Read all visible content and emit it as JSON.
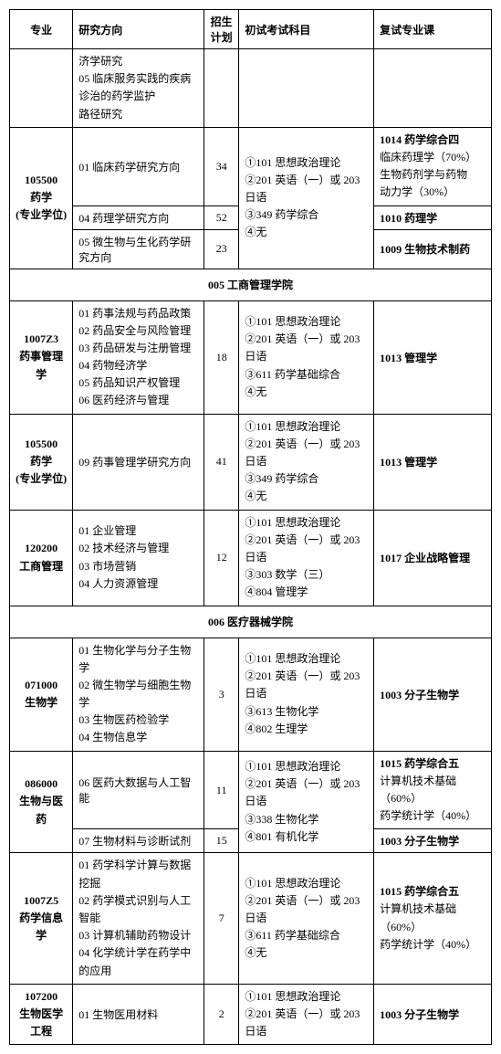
{
  "headers": {
    "major": "专业",
    "direction": "研究方向",
    "plan": "招生计划",
    "exam": "初试考试科目",
    "retest": "复试专业课"
  },
  "rows": {
    "r0_dir": "济学研究\n05 临床服务实践的疾病诊治的药学监护\n路径研究",
    "r1_major": "105500\n药学\n(专业学位)",
    "r1_dir": "01 临床药学研究方向",
    "r1_plan": "34",
    "r1_retest": "1014 药学综合四\n临床药理学（70%）\n生物药剂学与药物\n动力学（30%）",
    "r2_dir": "04 药理学研究方向",
    "r2_plan": "52",
    "r2_exam": "①101 思想政治理论\n②201 英语（一）或 203 日语\n③349 药学综合\n④无",
    "r2_retest": "1010 药理学",
    "r3_dir": "05 微生物与生化药学研究方向",
    "r3_plan": "23",
    "r3_retest": "1009 生物技术制药",
    "sec1": "005 工商管理学院",
    "r4_major": "1007Z3\n药事管理学",
    "r4_dir": "01 药事法规与药品政策\n02 药品安全与风险管理\n03 药品研发与注册管理\n04 药物经济学\n05 药品知识产权管理\n06 医药经济与管理",
    "r4_plan": "18",
    "r4_exam": "①101 思想政治理论\n②201 英语（一）或 203 日语\n③611 药学基础综合\n④无",
    "r4_retest": "1013 管理学",
    "r5_major": "105500\n药学\n(专业学位)",
    "r5_dir": "09 药事管理学研究方向",
    "r5_plan": "41",
    "r5_exam": "①101 思想政治理论\n②201 英语（一）或 203 日语\n③349 药学综合\n④无",
    "r5_retest": "1013 管理学",
    "r6_major": "120200\n工商管理",
    "r6_dir": "01 企业管理\n02 技术经济与管理\n03 市场营销\n04 人力资源管理",
    "r6_plan": "12",
    "r6_exam": "①101 思想政治理论\n②201 英语（一）或 203 日语\n③303 数学（三）\n④804 管理学",
    "r6_retest": "1017 企业战略管理",
    "sec2": "006 医疗器械学院",
    "r7_major": "071000\n生物学",
    "r7_dir": "01 生物化学与分子生物学\n02 微生物学与细胞生物学\n03 生物医药检验学\n04 生物信息学",
    "r7_plan": "3",
    "r7_exam": "①101 思想政治理论\n②201 英语（一）或 203 日语\n③613 生物化学\n④802 生理学",
    "r7_retest": "1003 分子生物学",
    "r8_major": "086000\n生物与医药",
    "r8_dir": "06 医药大数据与人工智能",
    "r8_plan": "11",
    "r8_exam": "①101 思想政治理论\n②201 英语（一）或 203 日语\n③338 生物化学\n④801 有机化学",
    "r8_retest": "1015 药学综合五\n计算机技术基础（60%）\n药学统计学（40%）",
    "r9_dir": "07 生物材料与诊断试剂",
    "r9_plan": "15",
    "r9_retest": "1003 分子生物学",
    "r10_major": "1007Z5\n药学信息学",
    "r10_dir": "01 药学科学计算与数据挖掘\n02 药学模式识别与人工智能\n03 计算机辅助药物设计\n04 化学统计学在药学中的应用",
    "r10_plan": "7",
    "r10_exam": "①101 思想政治理论\n②201 英语（一）或 203 日语\n③611 药学基础综合\n④无",
    "r10_retest": "1015 药学综合五\n计算机技术基础（60%）\n药学统计学（40%）",
    "r11_major": "107200\n生物医学工程",
    "r11_dir": "01 生物医用材料",
    "r11_plan": "2",
    "r11_exam": "①101 思想政治理论\n②201 英语（一）或 203 日语",
    "r11_retest": "1003 分子生物学"
  },
  "bold_codes": {
    "c1": "1014",
    "c2": "1010",
    "c3": "1009",
    "c4": "1013",
    "c5": "1013",
    "c6": "1017",
    "c7": "1003",
    "c8": "1015",
    "c9": "1003",
    "c10": "1015",
    "c11": "1003"
  }
}
